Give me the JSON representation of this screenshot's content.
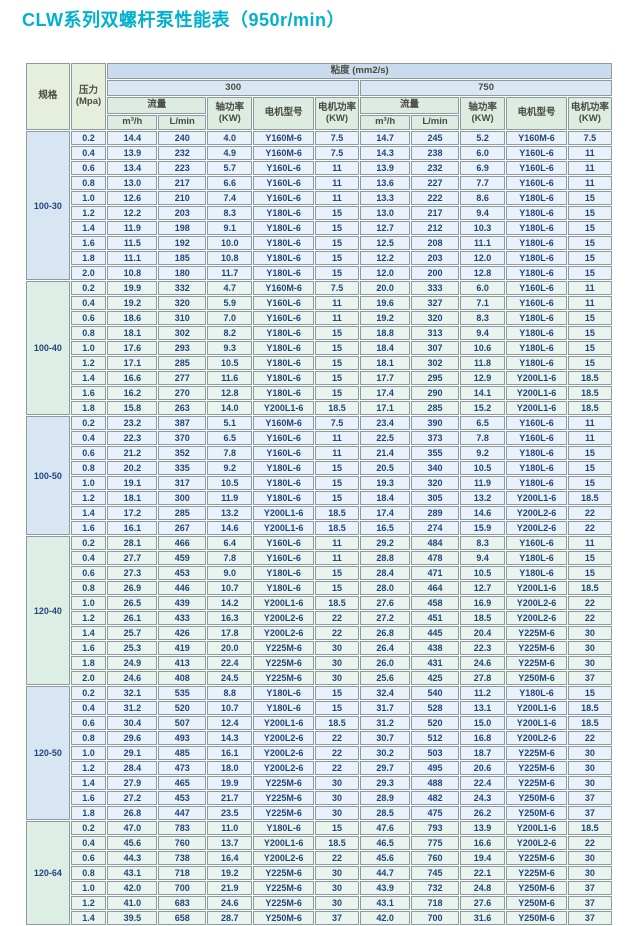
{
  "title": "CLW系列双螺杆泵性能表（950r/min）",
  "colors": {
    "title": "#00b1ce",
    "header_green": "#e5efdb",
    "header_blue_dark": "#c9dbec",
    "header_blue_light": "#d9e7f4",
    "subheader_green": "#dcece1",
    "row_blue": "#e9f1fa",
    "row_green": "#eaf4ee",
    "border": "#8d9ba1",
    "data_text": "#20477b"
  },
  "table": {
    "spec_header": "规格",
    "pressure_header": "压力\n(Mpa)",
    "viscosity_header": "粘度 (mm2/s)",
    "viscosity_300": "300",
    "viscosity_750": "750",
    "flow_header": "流量",
    "flow_unit_m3h": "m³/h",
    "flow_unit_lmin": "L/min",
    "shaft_power_header": "轴功率\n(KW)",
    "motor_model_header": "电机型号",
    "motor_power_header": "电机功率\n(KW)"
  },
  "groups": [
    {
      "spec": "100-30",
      "tone": "blue",
      "rows": [
        {
          "p": "0.2",
          "c": [
            "14.4",
            "240",
            "4.0",
            "Y160M-6",
            "7.5",
            "14.7",
            "245",
            "5.2",
            "Y160M-6",
            "7.5"
          ]
        },
        {
          "p": "0.4",
          "c": [
            "13.9",
            "232",
            "4.9",
            "Y160M-6",
            "7.5",
            "14.3",
            "238",
            "6.0",
            "Y160L-6",
            "11"
          ]
        },
        {
          "p": "0.6",
          "c": [
            "13.4",
            "223",
            "5.7",
            "Y160L-6",
            "11",
            "13.9",
            "232",
            "6.9",
            "Y160L-6",
            "11"
          ]
        },
        {
          "p": "0.8",
          "c": [
            "13.0",
            "217",
            "6.6",
            "Y160L-6",
            "11",
            "13.6",
            "227",
            "7.7",
            "Y160L-6",
            "11"
          ]
        },
        {
          "p": "1.0",
          "c": [
            "12.6",
            "210",
            "7.4",
            "Y160L-6",
            "11",
            "13.3",
            "222",
            "8.6",
            "Y180L-6",
            "15"
          ]
        },
        {
          "p": "1.2",
          "c": [
            "12.2",
            "203",
            "8.3",
            "Y180L-6",
            "15",
            "13.0",
            "217",
            "9.4",
            "Y180L-6",
            "15"
          ]
        },
        {
          "p": "1.4",
          "c": [
            "11.9",
            "198",
            "9.1",
            "Y180L-6",
            "15",
            "12.7",
            "212",
            "10.3",
            "Y180L-6",
            "15"
          ]
        },
        {
          "p": "1.6",
          "c": [
            "11.5",
            "192",
            "10.0",
            "Y180L-6",
            "15",
            "12.5",
            "208",
            "11.1",
            "Y180L-6",
            "15"
          ]
        },
        {
          "p": "1.8",
          "c": [
            "11.1",
            "185",
            "10.8",
            "Y180L-6",
            "15",
            "12.2",
            "203",
            "12.0",
            "Y180L-6",
            "15"
          ]
        },
        {
          "p": "2.0",
          "c": [
            "10.8",
            "180",
            "11.7",
            "Y180L-6",
            "15",
            "12.0",
            "200",
            "12.8",
            "Y180L-6",
            "15"
          ]
        }
      ]
    },
    {
      "spec": "100-40",
      "tone": "green",
      "rows": [
        {
          "p": "0.2",
          "c": [
            "19.9",
            "332",
            "4.7",
            "Y160M-6",
            "7.5",
            "20.0",
            "333",
            "6.0",
            "Y160L-6",
            "11"
          ]
        },
        {
          "p": "0.4",
          "c": [
            "19.2",
            "320",
            "5.9",
            "Y160L-6",
            "11",
            "19.6",
            "327",
            "7.1",
            "Y160L-6",
            "11"
          ]
        },
        {
          "p": "0.6",
          "c": [
            "18.6",
            "310",
            "7.0",
            "Y160L-6",
            "11",
            "19.2",
            "320",
            "8.3",
            "Y180L-6",
            "15"
          ]
        },
        {
          "p": "0.8",
          "c": [
            "18.1",
            "302",
            "8.2",
            "Y180L-6",
            "15",
            "18.8",
            "313",
            "9.4",
            "Y180L-6",
            "15"
          ]
        },
        {
          "p": "1.0",
          "c": [
            "17.6",
            "293",
            "9.3",
            "Y180L-6",
            "15",
            "18.4",
            "307",
            "10.6",
            "Y180L-6",
            "15"
          ]
        },
        {
          "p": "1.2",
          "c": [
            "17.1",
            "285",
            "10.5",
            "Y180L-6",
            "15",
            "18.1",
            "302",
            "11.8",
            "Y180L-6",
            "15"
          ]
        },
        {
          "p": "1.4",
          "c": [
            "16.6",
            "277",
            "11.6",
            "Y180L-6",
            "15",
            "17.7",
            "295",
            "12.9",
            "Y200L1-6",
            "18.5"
          ]
        },
        {
          "p": "1.6",
          "c": [
            "16.2",
            "270",
            "12.8",
            "Y180L-6",
            "15",
            "17.4",
            "290",
            "14.1",
            "Y200L1-6",
            "18.5"
          ]
        },
        {
          "p": "1.8",
          "c": [
            "15.8",
            "263",
            "14.0",
            "Y200L1-6",
            "18.5",
            "17.1",
            "285",
            "15.2",
            "Y200L1-6",
            "18.5"
          ]
        }
      ]
    },
    {
      "spec": "100-50",
      "tone": "blue",
      "rows": [
        {
          "p": "0.2",
          "c": [
            "23.2",
            "387",
            "5.1",
            "Y160M-6",
            "7.5",
            "23.4",
            "390",
            "6.5",
            "Y160L-6",
            "11"
          ]
        },
        {
          "p": "0.4",
          "c": [
            "22.3",
            "370",
            "6.5",
            "Y160L-6",
            "11",
            "22.5",
            "373",
            "7.8",
            "Y160L-6",
            "11"
          ]
        },
        {
          "p": "0.6",
          "c": [
            "21.2",
            "352",
            "7.8",
            "Y160L-6",
            "11",
            "21.4",
            "355",
            "9.2",
            "Y180L-6",
            "15"
          ]
        },
        {
          "p": "0.8",
          "c": [
            "20.2",
            "335",
            "9.2",
            "Y180L-6",
            "15",
            "20.5",
            "340",
            "10.5",
            "Y180L-6",
            "15"
          ]
        },
        {
          "p": "1.0",
          "c": [
            "19.1",
            "317",
            "10.5",
            "Y180L-6",
            "15",
            "19.3",
            "320",
            "11.9",
            "Y180L-6",
            "15"
          ]
        },
        {
          "p": "1.2",
          "c": [
            "18.1",
            "300",
            "11.9",
            "Y180L-6",
            "15",
            "18.4",
            "305",
            "13.2",
            "Y200L1-6",
            "18.5"
          ]
        },
        {
          "p": "1.4",
          "c": [
            "17.2",
            "285",
            "13.2",
            "Y200L1-6",
            "18.5",
            "17.4",
            "289",
            "14.6",
            "Y200L2-6",
            "22"
          ]
        },
        {
          "p": "1.6",
          "c": [
            "16.1",
            "267",
            "14.6",
            "Y200L1-6",
            "18.5",
            "16.5",
            "274",
            "15.9",
            "Y200L2-6",
            "22"
          ]
        }
      ]
    },
    {
      "spec": "120-40",
      "tone": "green",
      "rows": [
        {
          "p": "0.2",
          "c": [
            "28.1",
            "466",
            "6.4",
            "Y160L-6",
            "11",
            "29.2",
            "484",
            "8.3",
            "Y160L-6",
            "11"
          ]
        },
        {
          "p": "0.4",
          "c": [
            "27.7",
            "459",
            "7.8",
            "Y160L-6",
            "11",
            "28.8",
            "478",
            "9.4",
            "Y180L-6",
            "15"
          ]
        },
        {
          "p": "0.6",
          "c": [
            "27.3",
            "453",
            "9.0",
            "Y180L-6",
            "15",
            "28.4",
            "471",
            "10.5",
            "Y180L-6",
            "15"
          ]
        },
        {
          "p": "0.8",
          "c": [
            "26.9",
            "446",
            "10.7",
            "Y180L-6",
            "15",
            "28.0",
            "464",
            "12.7",
            "Y200L1-6",
            "18.5"
          ]
        },
        {
          "p": "1.0",
          "c": [
            "26.5",
            "439",
            "14.2",
            "Y200L1-6",
            "18.5",
            "27.6",
            "458",
            "16.9",
            "Y200L2-6",
            "22"
          ]
        },
        {
          "p": "1.2",
          "c": [
            "26.1",
            "433",
            "16.3",
            "Y200L2-6",
            "22",
            "27.2",
            "451",
            "18.5",
            "Y200L2-6",
            "22"
          ]
        },
        {
          "p": "1.4",
          "c": [
            "25.7",
            "426",
            "17.8",
            "Y200L2-6",
            "22",
            "26.8",
            "445",
            "20.4",
            "Y225M-6",
            "30"
          ]
        },
        {
          "p": "1.6",
          "c": [
            "25.3",
            "419",
            "20.0",
            "Y225M-6",
            "30",
            "26.4",
            "438",
            "22.3",
            "Y225M-6",
            "30"
          ]
        },
        {
          "p": "1.8",
          "c": [
            "24.9",
            "413",
            "22.4",
            "Y225M-6",
            "30",
            "26.0",
            "431",
            "24.6",
            "Y225M-6",
            "30"
          ]
        },
        {
          "p": "2.0",
          "c": [
            "24.6",
            "408",
            "24.5",
            "Y225M-6",
            "30",
            "25.6",
            "425",
            "27.8",
            "Y250M-6",
            "37"
          ]
        }
      ]
    },
    {
      "spec": "120-50",
      "tone": "blue",
      "rows": [
        {
          "p": "0.2",
          "c": [
            "32.1",
            "535",
            "8.8",
            "Y180L-6",
            "15",
            "32.4",
            "540",
            "11.2",
            "Y180L-6",
            "15"
          ]
        },
        {
          "p": "0.4",
          "c": [
            "31.2",
            "520",
            "10.7",
            "Y180L-6",
            "15",
            "31.7",
            "528",
            "13.1",
            "Y200L1-6",
            "18.5"
          ]
        },
        {
          "p": "0.6",
          "c": [
            "30.4",
            "507",
            "12.4",
            "Y200L1-6",
            "18.5",
            "31.2",
            "520",
            "15.0",
            "Y200L1-6",
            "18.5"
          ]
        },
        {
          "p": "0.8",
          "c": [
            "29.6",
            "493",
            "14.3",
            "Y200L2-6",
            "22",
            "30.7",
            "512",
            "16.8",
            "Y200L2-6",
            "22"
          ]
        },
        {
          "p": "1.0",
          "c": [
            "29.1",
            "485",
            "16.1",
            "Y200L2-6",
            "22",
            "30.2",
            "503",
            "18.7",
            "Y225M-6",
            "30"
          ]
        },
        {
          "p": "1.2",
          "c": [
            "28.4",
            "473",
            "18.0",
            "Y200L2-6",
            "22",
            "29.7",
            "495",
            "20.6",
            "Y225M-6",
            "30"
          ]
        },
        {
          "p": "1.4",
          "c": [
            "27.9",
            "465",
            "19.9",
            "Y225M-6",
            "30",
            "29.3",
            "488",
            "22.4",
            "Y225M-6",
            "30"
          ]
        },
        {
          "p": "1.6",
          "c": [
            "27.2",
            "453",
            "21.7",
            "Y225M-6",
            "30",
            "28.9",
            "482",
            "24.3",
            "Y250M-6",
            "37"
          ]
        },
        {
          "p": "1.8",
          "c": [
            "26.8",
            "447",
            "23.5",
            "Y225M-6",
            "30",
            "28.5",
            "475",
            "26.2",
            "Y250M-6",
            "37"
          ]
        }
      ]
    },
    {
      "spec": "120-64",
      "tone": "green",
      "rows": [
        {
          "p": "0.2",
          "c": [
            "47.0",
            "783",
            "11.0",
            "Y180L-6",
            "15",
            "47.6",
            "793",
            "13.9",
            "Y200L1-6",
            "18.5"
          ]
        },
        {
          "p": "0.4",
          "c": [
            "45.6",
            "760",
            "13.7",
            "Y200L1-6",
            "18.5",
            "46.5",
            "775",
            "16.6",
            "Y200L2-6",
            "22"
          ]
        },
        {
          "p": "0.6",
          "c": [
            "44.3",
            "738",
            "16.4",
            "Y200L2-6",
            "22",
            "45.6",
            "760",
            "19.4",
            "Y225M-6",
            "30"
          ]
        },
        {
          "p": "0.8",
          "c": [
            "43.1",
            "718",
            "19.2",
            "Y225M-6",
            "30",
            "44.7",
            "745",
            "22.1",
            "Y225M-6",
            "30"
          ]
        },
        {
          "p": "1.0",
          "c": [
            "42.0",
            "700",
            "21.9",
            "Y225M-6",
            "30",
            "43.9",
            "732",
            "24.8",
            "Y250M-6",
            "37"
          ]
        },
        {
          "p": "1.2",
          "c": [
            "41.0",
            "683",
            "24.6",
            "Y225M-6",
            "30",
            "43.1",
            "718",
            "27.6",
            "Y250M-6",
            "37"
          ]
        },
        {
          "p": "1.4",
          "c": [
            "39.5",
            "658",
            "28.7",
            "Y250M-6",
            "37",
            "42.0",
            "700",
            "31.6",
            "Y250M-6",
            "37"
          ]
        }
      ]
    }
  ]
}
